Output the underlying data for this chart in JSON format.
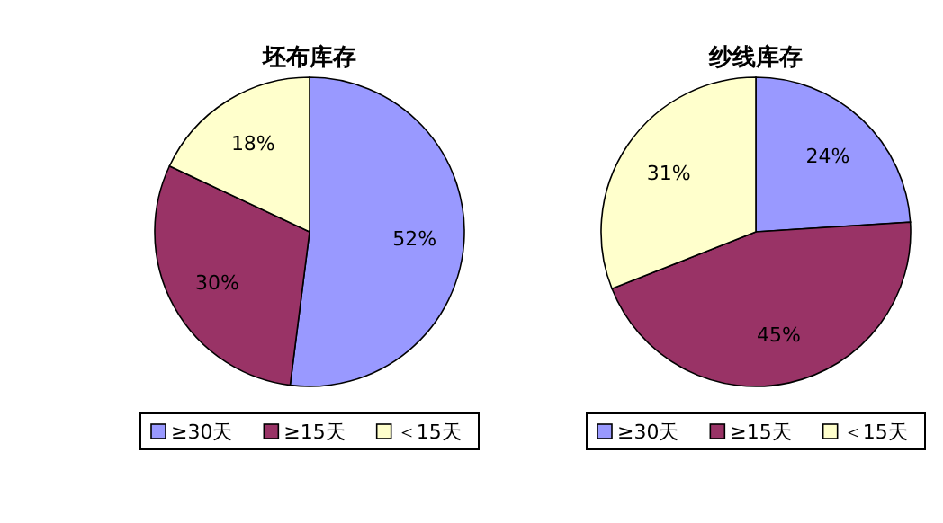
{
  "chart_data": [
    {
      "type": "pie",
      "title": "坯布库存",
      "categories": [
        "≥30天",
        "≥15天",
        "＜15天"
      ],
      "values": [
        52,
        30,
        18
      ],
      "value_labels": [
        "52%",
        "30%",
        "18%"
      ],
      "colors": [
        "#9999ff",
        "#993366",
        "#ffffcc"
      ],
      "legend": "bottom"
    },
    {
      "type": "pie",
      "title": "纱线库存",
      "categories": [
        "≥30天",
        "≥15天",
        "＜15天"
      ],
      "values": [
        24,
        45,
        31
      ],
      "value_labels": [
        "24%",
        "45%",
        "31%"
      ],
      "colors": [
        "#9999ff",
        "#993366",
        "#ffffcc"
      ],
      "legend": "bottom"
    }
  ]
}
